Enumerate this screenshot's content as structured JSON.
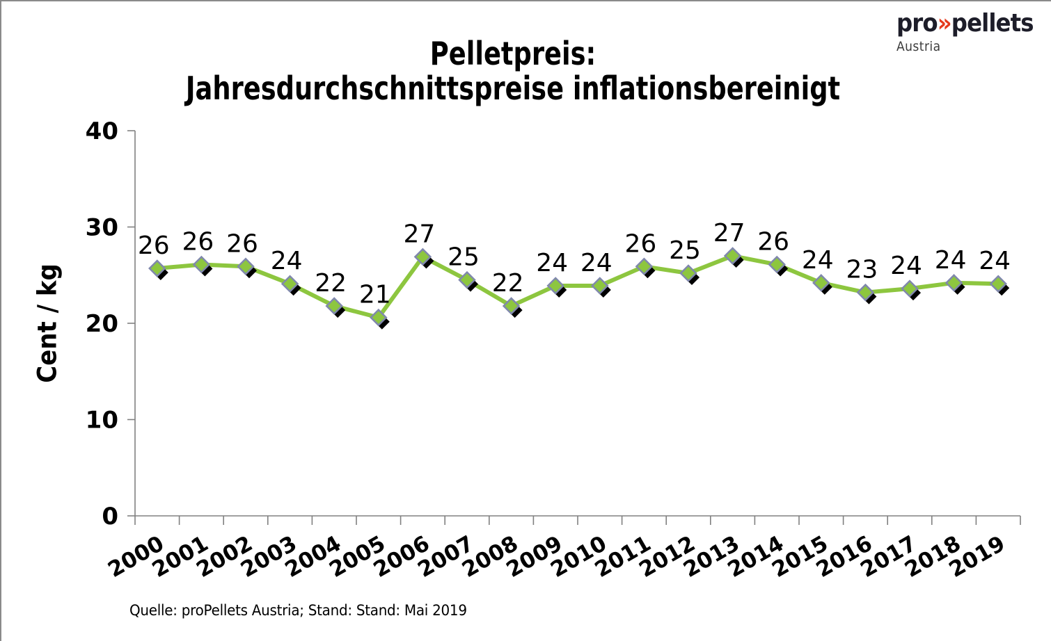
{
  "title": {
    "line1": "Pelletpreis:",
    "line2": "Jahresdurchschnittspreise inflationsbereinigt"
  },
  "logo": {
    "pro": "pro",
    "chevrons": "»",
    "pellets": "pellets",
    "country": "Austria"
  },
  "source_note": "Quelle: proPellets Austria; Stand: Stand: Mai 2019",
  "chart_data": {
    "type": "line",
    "title": "Pelletpreis: Jahresdurchschnittspreise inflationsbereinigt",
    "xlabel": "",
    "ylabel": "Cent / kg",
    "categories": [
      "2000",
      "2001",
      "2002",
      "2003",
      "2004",
      "2005",
      "2006",
      "2007",
      "2008",
      "2009",
      "2010",
      "2011",
      "2012",
      "2013",
      "2014",
      "2015",
      "2016",
      "2017",
      "2018",
      "2019"
    ],
    "values": [
      26,
      26,
      26,
      24,
      22,
      21,
      27,
      25,
      22,
      24,
      24,
      26,
      25,
      27,
      26,
      24,
      23,
      24,
      24,
      24
    ],
    "plot_values": [
      25.7,
      26.1,
      25.9,
      24.1,
      21.8,
      20.6,
      26.9,
      24.5,
      21.8,
      23.9,
      23.9,
      25.9,
      25.2,
      27.0,
      26.1,
      24.2,
      23.2,
      23.6,
      24.2,
      24.1
    ],
    "data_labels_visible": true,
    "ylim": [
      0,
      40
    ],
    "yticks": [
      0,
      10,
      20,
      30,
      40
    ],
    "grid": false,
    "legend": "none",
    "marker_shape": "diamond",
    "colors": {
      "line": "#8DC63F",
      "marker_fill": "#8DC63F",
      "marker_border": "#8088AC",
      "marker_shadow": "#000000",
      "axis": "#808080",
      "text": "#000000"
    }
  }
}
